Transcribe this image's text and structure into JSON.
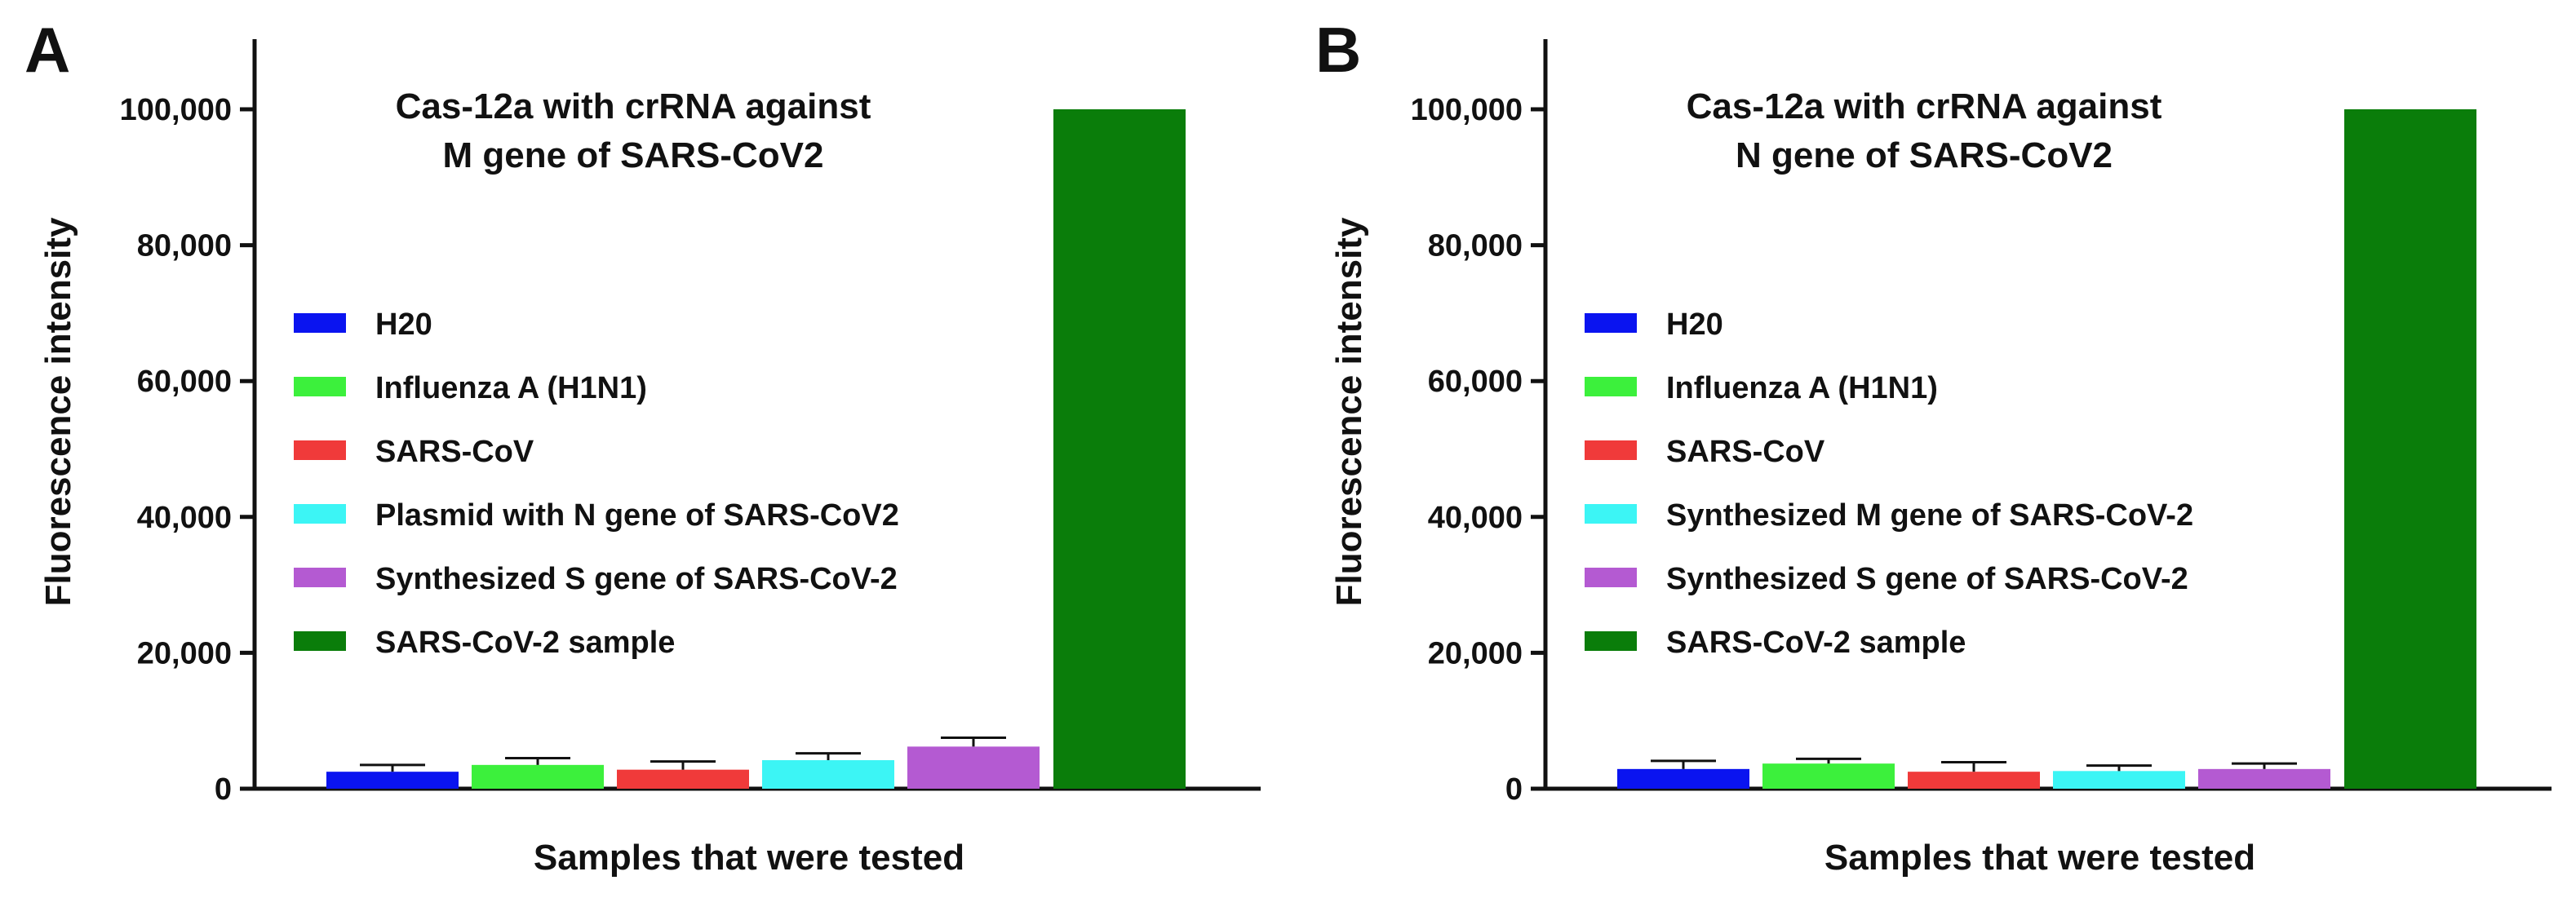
{
  "figure": {
    "panels": [
      "A",
      "B"
    ]
  },
  "chart_data": [
    {
      "type": "bar",
      "panel_label": "A",
      "title_lines": [
        "Cas-12a with crRNA against",
        "M gene of SARS-CoV2"
      ],
      "xlabel": "Samples that were tested",
      "ylabel": "Fluorescence intensity",
      "ylim": [
        0,
        110000
      ],
      "yticks": [
        0,
        20000,
        40000,
        60000,
        80000,
        100000
      ],
      "ytick_labels": [
        "0",
        "20,000",
        "40,000",
        "60,000",
        "80,000",
        "100,000"
      ],
      "grid": false,
      "legend_position": "left",
      "categories": [
        "H20",
        "Influenza A (H1N1)",
        "SARS-CoV",
        "Plasmid with N gene of SARS-CoV2",
        "Synthesized S gene of SARS-CoV-2",
        "SARS-CoV-2 sample"
      ],
      "colors": [
        "#0A14F0",
        "#3CF03C",
        "#F03A3A",
        "#3CF5F5",
        "#B45AD2",
        "#0A7D0A"
      ],
      "values": [
        2500,
        3500,
        2800,
        4200,
        6200,
        100000
      ],
      "errors": [
        1000,
        1000,
        1200,
        1000,
        1300,
        0
      ]
    },
    {
      "type": "bar",
      "panel_label": "B",
      "title_lines": [
        "Cas-12a with crRNA against",
        "N gene of SARS-CoV2"
      ],
      "xlabel": "Samples that were tested",
      "ylabel": "Fluorescence intensity",
      "ylim": [
        0,
        110000
      ],
      "yticks": [
        0,
        20000,
        40000,
        60000,
        80000,
        100000
      ],
      "ytick_labels": [
        "0",
        "20,000",
        "40,000",
        "60,000",
        "80,000",
        "100,000"
      ],
      "grid": false,
      "legend_position": "left",
      "categories": [
        "H20",
        "Influenza A (H1N1)",
        "SARS-CoV",
        "Synthesized M gene of SARS-CoV-2",
        "Synthesized S gene of SARS-CoV-2",
        "SARS-CoV-2 sample"
      ],
      "colors": [
        "#0A14F0",
        "#3CF03C",
        "#F03A3A",
        "#3CF5F5",
        "#B45AD2",
        "#0A7D0A"
      ],
      "values": [
        2900,
        3700,
        2500,
        2600,
        2900,
        100000
      ],
      "errors": [
        1200,
        700,
        1400,
        800,
        800,
        0
      ]
    }
  ]
}
